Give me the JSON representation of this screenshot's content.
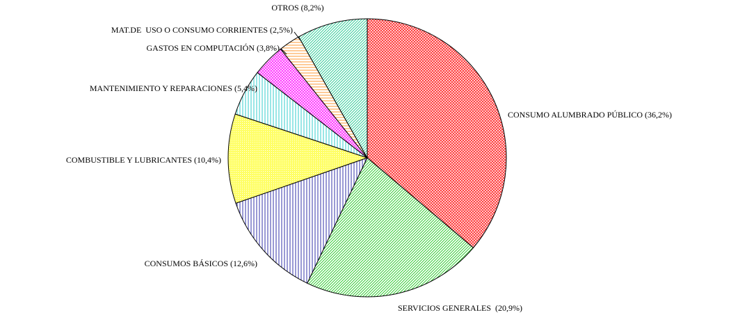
{
  "chart_data": {
    "type": "pie",
    "categories": [
      "CONSUMO ALUMBRADO PÚBLICO",
      "SERVICIOS GENERALES ",
      "CONSUMOS BÁSICOS",
      "COMBUSTIBLE Y LUBRICANTES",
      "MANTENIMIENTO Y REPARACIONES",
      "GASTOS EN COMPUTACIÓN",
      "MAT.DE  USO O CONSUMO CORRIENTES",
      "OTROS"
    ],
    "values": [
      36.2,
      20.9,
      12.6,
      10.4,
      5.4,
      3.8,
      2.5,
      8.2
    ],
    "value_labels": [
      "(36,2%)",
      "(20,9%)",
      "(12,6%)",
      "(10,4%)",
      "(5,4%)",
      "(3,8%)",
      "(2,5%)",
      "(8,2%)"
    ],
    "colors": [
      "#ff3333",
      "#33cc33",
      "#3333aa",
      "#ffff66",
      "#33cccc",
      "#ff33ff",
      "#ff9933",
      "#33cc99"
    ],
    "patterns": [
      "crosshatch",
      "diagonal",
      "vertical",
      "dots",
      "vertical",
      "crosshatch",
      "horizontal",
      "diagonal"
    ]
  }
}
